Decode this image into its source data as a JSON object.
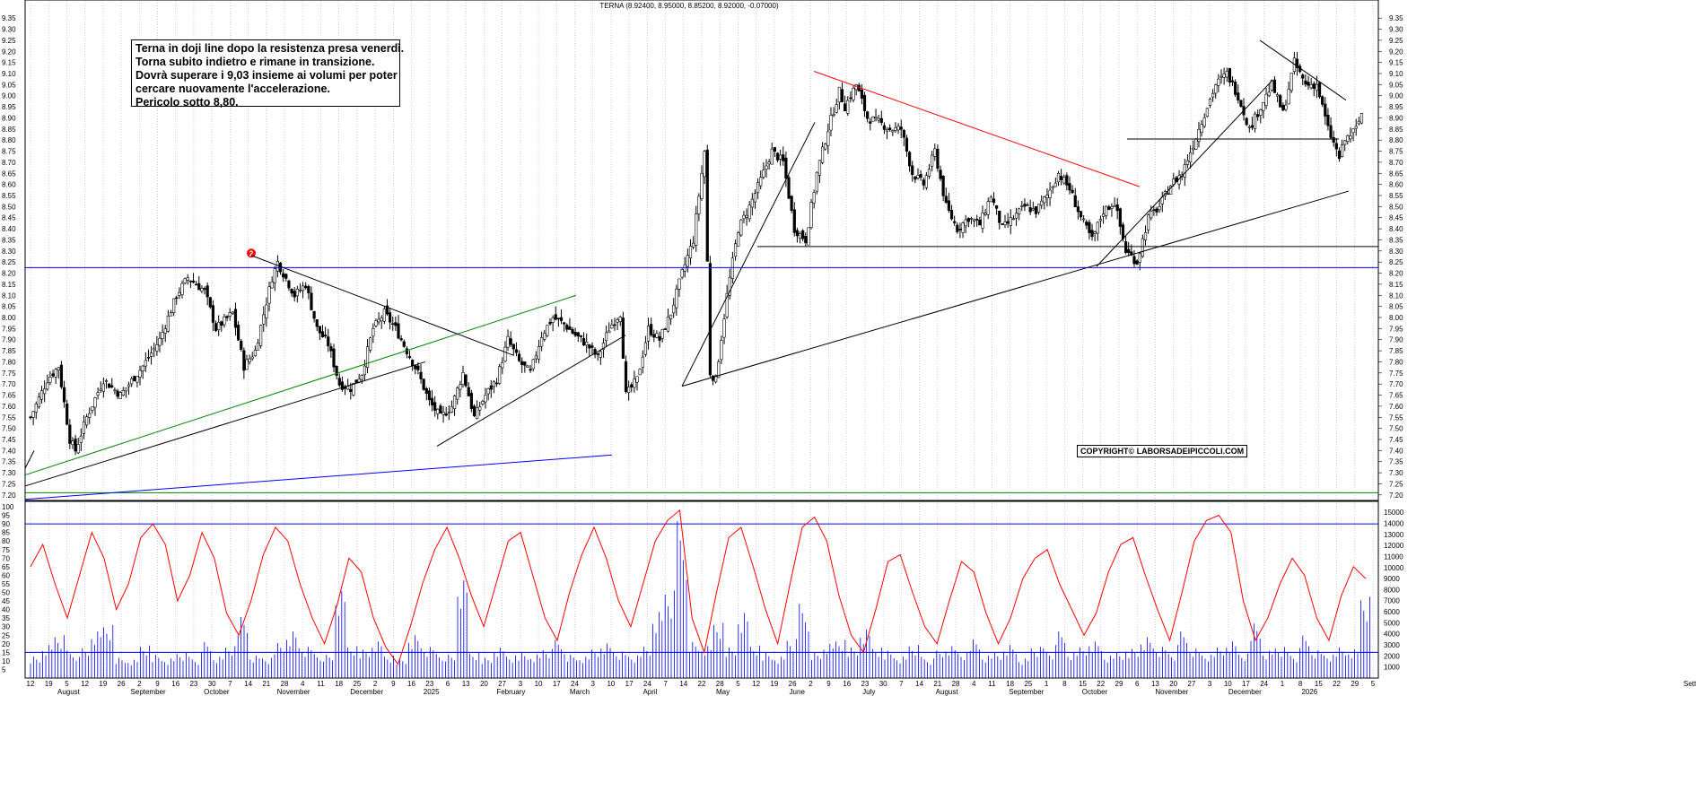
{
  "header": {
    "title": "TERNA (8.92400, 8.95000, 8.85200, 8.92000, -0.07000)"
  },
  "annotation": {
    "lines": [
      "Terna in doji line dopo la resistenza presa venerdì.",
      "Torna subito indietro e rimane  in transizione.",
      "Dovrà superare i 9,03 insieme ai volumi per poter",
      "cercare nuovamente l'accelerazione.",
      "Pericolo sotto 8,80."
    ]
  },
  "copyright": "COPYRIGHT© LABORSADEIPICCOLI.COM",
  "marker": {
    "label": "2"
  },
  "colors": {
    "candle": "#000000",
    "oscillator": "#ff0000",
    "volume": "#0000ff",
    "hline_blue": "#0000ff",
    "hline_green": "#008000",
    "trend_red": "#ff0000",
    "grid": "#b0b0b0"
  },
  "chart_data": [
    {
      "type": "candlestick",
      "title": "TERNA (8.92400, 8.95000, 8.85200, 8.92000, -0.07000)",
      "ylim": [
        7.175,
        9.375
      ],
      "yticks": [
        "9.35",
        "9.30",
        "9.25",
        "9.20",
        "9.15",
        "9.10",
        "9.05",
        "9.00",
        "8.95",
        "8.90",
        "8.85",
        "8.80",
        "8.75",
        "8.70",
        "8.65",
        "8.60",
        "8.55",
        "8.50",
        "8.45",
        "8.40",
        "8.35",
        "8.30",
        "8.25",
        "8.20",
        "8.15",
        "8.10",
        "8.05",
        "8.00",
        "7.95",
        "7.90",
        "7.85",
        "7.80",
        "7.75",
        "7.70",
        "7.65",
        "7.60",
        "7.55",
        "7.50",
        "7.45",
        "7.40",
        "7.35",
        "7.30",
        "7.25",
        "7.20"
      ],
      "grid": "vertical dotted",
      "last_bar": {
        "open": 8.924,
        "high": 8.95,
        "low": 8.852,
        "close": 8.92,
        "change": -0.07
      },
      "path_points": [
        {
          "day": 0,
          "close": 7.55
        },
        {
          "day": 6,
          "close": 7.72
        },
        {
          "day": 10,
          "close": 7.78
        },
        {
          "day": 14,
          "close": 7.45
        },
        {
          "day": 16,
          "close": 7.4
        },
        {
          "day": 20,
          "close": 7.55
        },
        {
          "day": 26,
          "close": 7.72
        },
        {
          "day": 32,
          "close": 7.65
        },
        {
          "day": 40,
          "close": 7.78
        },
        {
          "day": 46,
          "close": 7.9
        },
        {
          "day": 52,
          "close": 8.1
        },
        {
          "day": 56,
          "close": 8.18
        },
        {
          "day": 62,
          "close": 8.12
        },
        {
          "day": 66,
          "close": 7.95
        },
        {
          "day": 72,
          "close": 8.02
        },
        {
          "day": 76,
          "close": 7.78
        },
        {
          "day": 80,
          "close": 7.85
        },
        {
          "day": 86,
          "close": 8.18
        },
        {
          "day": 88,
          "close": 8.25
        },
        {
          "day": 94,
          "close": 8.1
        },
        {
          "day": 98,
          "close": 8.15
        },
        {
          "day": 102,
          "close": 7.95
        },
        {
          "day": 106,
          "close": 7.88
        },
        {
          "day": 110,
          "close": 7.7
        },
        {
          "day": 114,
          "close": 7.68
        },
        {
          "day": 118,
          "close": 7.75
        },
        {
          "day": 122,
          "close": 7.95
        },
        {
          "day": 126,
          "close": 8.02
        },
        {
          "day": 130,
          "close": 7.95
        },
        {
          "day": 134,
          "close": 7.85
        },
        {
          "day": 138,
          "close": 7.75
        },
        {
          "day": 142,
          "close": 7.62
        },
        {
          "day": 146,
          "close": 7.55
        },
        {
          "day": 150,
          "close": 7.6
        },
        {
          "day": 154,
          "close": 7.75
        },
        {
          "day": 158,
          "close": 7.55
        },
        {
          "day": 162,
          "close": 7.65
        },
        {
          "day": 166,
          "close": 7.72
        },
        {
          "day": 170,
          "close": 7.9
        },
        {
          "day": 174,
          "close": 7.8
        },
        {
          "day": 178,
          "close": 7.75
        },
        {
          "day": 182,
          "close": 7.92
        },
        {
          "day": 186,
          "close": 8.0
        },
        {
          "day": 190,
          "close": 7.97
        },
        {
          "day": 194,
          "close": 7.92
        },
        {
          "day": 198,
          "close": 7.88
        },
        {
          "day": 202,
          "close": 7.82
        },
        {
          "day": 206,
          "close": 7.95
        },
        {
          "day": 210,
          "close": 8.02
        },
        {
          "day": 212,
          "close": 7.65
        },
        {
          "day": 216,
          "close": 7.72
        },
        {
          "day": 220,
          "close": 7.95
        },
        {
          "day": 224,
          "close": 7.9
        },
        {
          "day": 228,
          "close": 8.02
        },
        {
          "day": 232,
          "close": 8.2
        },
        {
          "day": 236,
          "close": 8.35
        },
        {
          "day": 240,
          "close": 8.75
        },
        {
          "day": 242,
          "close": 7.75
        },
        {
          "day": 244,
          "close": 7.72
        },
        {
          "day": 248,
          "close": 8.1
        },
        {
          "day": 252,
          "close": 8.4
        },
        {
          "day": 256,
          "close": 8.5
        },
        {
          "day": 260,
          "close": 8.62
        },
        {
          "day": 264,
          "close": 8.75
        },
        {
          "day": 268,
          "close": 8.7
        },
        {
          "day": 272,
          "close": 8.4
        },
        {
          "day": 276,
          "close": 8.35
        },
        {
          "day": 280,
          "close": 8.65
        },
        {
          "day": 284,
          "close": 8.85
        },
        {
          "day": 288,
          "close": 9.02
        },
        {
          "day": 290,
          "close": 8.95
        },
        {
          "day": 294,
          "close": 9.05
        },
        {
          "day": 298,
          "close": 8.9
        },
        {
          "day": 302,
          "close": 8.88
        },
        {
          "day": 306,
          "close": 8.85
        },
        {
          "day": 310,
          "close": 8.85
        },
        {
          "day": 314,
          "close": 8.65
        },
        {
          "day": 318,
          "close": 8.6
        },
        {
          "day": 322,
          "close": 8.75
        },
        {
          "day": 326,
          "close": 8.5
        },
        {
          "day": 330,
          "close": 8.4
        },
        {
          "day": 334,
          "close": 8.45
        },
        {
          "day": 338,
          "close": 8.42
        },
        {
          "day": 342,
          "close": 8.55
        },
        {
          "day": 346,
          "close": 8.4
        },
        {
          "day": 350,
          "close": 8.45
        },
        {
          "day": 354,
          "close": 8.5
        },
        {
          "day": 358,
          "close": 8.48
        },
        {
          "day": 362,
          "close": 8.55
        },
        {
          "day": 366,
          "close": 8.65
        },
        {
          "day": 370,
          "close": 8.58
        },
        {
          "day": 374,
          "close": 8.45
        },
        {
          "day": 378,
          "close": 8.35
        },
        {
          "day": 382,
          "close": 8.48
        },
        {
          "day": 386,
          "close": 8.52
        },
        {
          "day": 390,
          "close": 8.3
        },
        {
          "day": 394,
          "close": 8.25
        },
        {
          "day": 398,
          "close": 8.45
        },
        {
          "day": 402,
          "close": 8.5
        },
        {
          "day": 406,
          "close": 8.6
        },
        {
          "day": 410,
          "close": 8.65
        },
        {
          "day": 414,
          "close": 8.78
        },
        {
          "day": 418,
          "close": 8.92
        },
        {
          "day": 422,
          "close": 9.05
        },
        {
          "day": 426,
          "close": 9.1
        },
        {
          "day": 430,
          "close": 9.0
        },
        {
          "day": 434,
          "close": 8.85
        },
        {
          "day": 438,
          "close": 8.95
        },
        {
          "day": 442,
          "close": 9.05
        },
        {
          "day": 446,
          "close": 8.92
        },
        {
          "day": 450,
          "close": 9.15
        },
        {
          "day": 454,
          "close": 9.05
        },
        {
          "day": 458,
          "close": 9.05
        },
        {
          "day": 462,
          "close": 8.85
        },
        {
          "day": 466,
          "close": 8.72
        },
        {
          "day": 468,
          "close": 8.8
        },
        {
          "day": 472,
          "close": 8.85
        },
        {
          "day": 474,
          "close": 8.92
        }
      ]
    },
    {
      "type": "bar",
      "series": [
        {
          "name": "volume",
          "values": [
            2200,
            3400,
            4400,
            2600,
            2800,
            4400,
            5000,
            2000,
            1800,
            3200,
            2400,
            2000,
            2600,
            2000,
            3400,
            2000,
            3000,
            6000,
            2200,
            2000,
            3600,
            4800,
            3200,
            2600,
            2200,
            8200,
            3000,
            2800,
            3600,
            2200,
            2000,
            4400,
            3200,
            2600,
            2200,
            9200,
            2400,
            2000,
            3000,
            2200,
            2600,
            2400,
            3000,
            3600,
            2200,
            2000,
            2800,
            3400,
            2600,
            2200,
            3200,
            6800,
            9000,
            14800,
            3400,
            3000,
            5200,
            3000,
            6400,
            3200,
            2600,
            2200,
            4000,
            7000,
            2400,
            3200,
            3600,
            3000,
            4800,
            3000,
            2800,
            2200,
            3400,
            2000,
            2600,
            3000,
            2400,
            3800,
            2200,
            2600,
            3400,
            2000,
            3200,
            2800,
            4400,
            2400,
            3000,
            3600,
            2200,
            2600,
            3000,
            4200,
            3200,
            2600,
            4400,
            2800,
            2200,
            3000,
            3600,
            2400,
            5600,
            2800,
            3200,
            2400,
            4000,
            2600,
            2200,
            3000,
            2800,
            8000
          ]
        }
      ],
      "ylim": [
        0,
        15500
      ],
      "yticks": [
        "15000",
        "14000",
        "13000",
        "12000",
        "11000",
        "10000",
        "9000",
        "8000",
        "7000",
        "6000",
        "5000",
        "4000",
        "3000",
        "2000",
        "1000"
      ]
    },
    {
      "type": "line",
      "series": [
        {
          "name": "",
          "values": [
            65,
            78,
            55,
            35,
            60,
            85,
            70,
            40,
            55,
            82,
            90,
            78,
            45,
            60,
            85,
            70,
            38,
            25,
            45,
            72,
            88,
            80,
            55,
            35,
            20,
            42,
            70,
            62,
            35,
            18,
            8,
            30,
            55,
            75,
            88,
            70,
            48,
            30,
            55,
            80,
            85,
            60,
            35,
            22,
            50,
            72,
            88,
            70,
            45,
            30,
            55,
            80,
            92,
            98,
            35,
            15,
            50,
            82,
            88,
            65,
            40,
            20,
            55,
            88,
            94,
            80,
            48,
            25,
            15,
            40,
            68,
            72,
            50,
            30,
            20,
            45,
            68,
            62,
            38,
            20,
            35,
            58,
            70,
            75,
            55,
            40,
            25,
            38,
            62,
            78,
            82,
            60,
            40,
            22,
            50,
            80,
            92,
            95,
            85,
            45,
            22,
            35,
            55,
            70,
            60,
            35,
            22,
            48,
            65,
            58
          ]
        }
      ],
      "ylim": [
        0,
        100
      ],
      "yticks": [
        "100",
        "95",
        "90",
        "85",
        "80",
        "75",
        "70",
        "65",
        "60",
        "55",
        "50",
        "45",
        "40",
        "35",
        "30",
        "25",
        "20",
        "15",
        "10",
        "5"
      ]
    }
  ],
  "xaxis": {
    "day_ticks": [
      "12",
      "19",
      "5",
      "12",
      "19",
      "26",
      "2",
      "9",
      "16",
      "23",
      "30",
      "7",
      "14",
      "21",
      "28",
      "4",
      "11",
      "18",
      "25",
      "2",
      "9",
      "16",
      "23",
      "6",
      "13",
      "20",
      "27",
      "3",
      "10",
      "17",
      "24",
      "3",
      "10",
      "17",
      "24",
      "7",
      "14",
      "22",
      "28",
      "5",
      "12",
      "19",
      "26",
      "2",
      "9",
      "16",
      "23",
      "30",
      "7",
      "14",
      "21",
      "28",
      "4",
      "11",
      "18",
      "25",
      "1",
      "8",
      "15",
      "22",
      "29",
      "6",
      "13",
      "20",
      "27",
      "3",
      "10",
      "17",
      "24",
      "1",
      "8",
      "15",
      "22",
      "29",
      "5"
    ],
    "month_labels": [
      "August",
      "September",
      "October",
      "November",
      "December",
      "2025",
      "February",
      "March",
      "April",
      "May",
      "June",
      "July",
      "August",
      "September",
      "October",
      "November",
      "December",
      "2026"
    ],
    "axis_unit_label": "Sett"
  }
}
